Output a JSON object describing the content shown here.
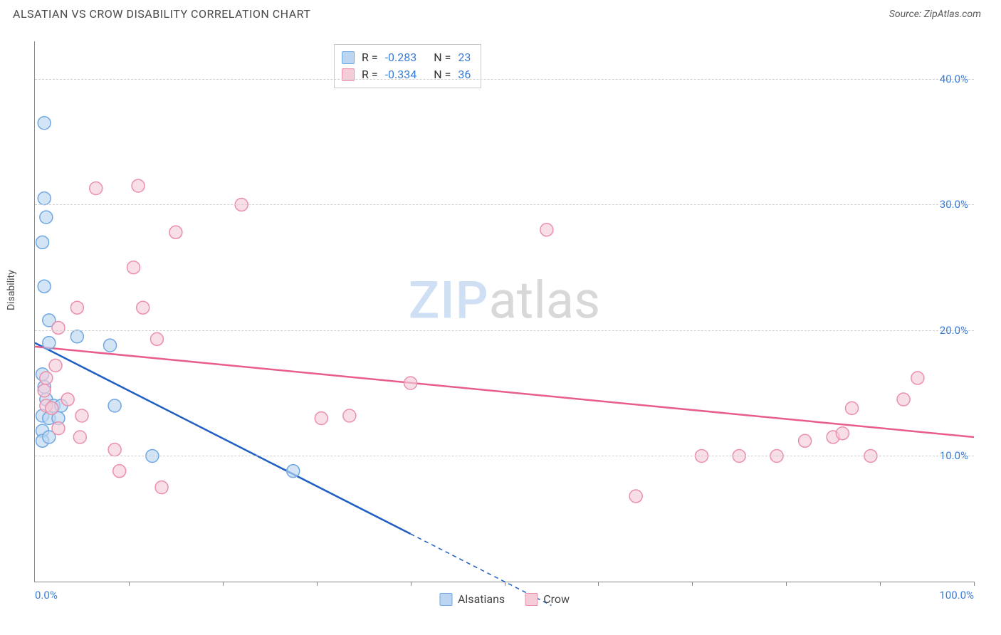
{
  "header": {
    "title": "ALSATIAN VS CROW DISABILITY CORRELATION CHART",
    "source": "Source: ZipAtlas.com"
  },
  "chart": {
    "type": "scatter",
    "ylabel": "Disability",
    "xlim": [
      0,
      100
    ],
    "ylim": [
      0,
      43
    ],
    "yticks": [
      10,
      20,
      30,
      40
    ],
    "ytick_labels": [
      "10.0%",
      "20.0%",
      "30.0%",
      "40.0%"
    ],
    "xtick_labels": [
      "0.0%",
      "100.0%"
    ],
    "xtick_positions": [
      10,
      20,
      30,
      40,
      50,
      60,
      70,
      80,
      90,
      100
    ],
    "grid_color": "#d0d0d0",
    "axis_color": "#888888",
    "background_color": "#ffffff",
    "marker_radius": 9,
    "marker_stroke_width": 1.5,
    "trend_line_width": 2.5,
    "watermark": {
      "zip": "ZIP",
      "atlas": "atlas"
    },
    "series": [
      {
        "name": "Alsatians",
        "fill": "#bcd5f0",
        "stroke": "#6fa8e4",
        "trend_color": "#1f5fc4",
        "trend": {
          "x1": 0,
          "y1": 19.0,
          "x2": 40,
          "y2": 3.8,
          "dash_to_x": 55
        },
        "R": "-0.283",
        "N": "23",
        "points": [
          [
            1.0,
            36.5
          ],
          [
            1.0,
            30.5
          ],
          [
            1.2,
            29.0
          ],
          [
            0.8,
            27.0
          ],
          [
            1.0,
            23.5
          ],
          [
            1.5,
            20.8
          ],
          [
            1.5,
            19.0
          ],
          [
            4.5,
            19.5
          ],
          [
            0.8,
            16.5
          ],
          [
            1.0,
            15.5
          ],
          [
            1.2,
            14.5
          ],
          [
            2.0,
            14.0
          ],
          [
            2.8,
            14.0
          ],
          [
            0.8,
            13.2
          ],
          [
            1.5,
            13.0
          ],
          [
            2.5,
            13.0
          ],
          [
            0.8,
            12.0
          ],
          [
            0.8,
            11.2
          ],
          [
            1.5,
            11.5
          ],
          [
            8.5,
            14.0
          ],
          [
            8.0,
            18.8
          ],
          [
            12.5,
            10.0
          ],
          [
            27.5,
            8.8
          ]
        ]
      },
      {
        "name": "Crow",
        "fill": "#f5cdd8",
        "stroke": "#eb8fac",
        "trend_color": "#e85d8c",
        "trend": {
          "x1": 0,
          "y1": 18.7,
          "x2": 100,
          "y2": 11.5
        },
        "R": "-0.334",
        "N": "36",
        "points": [
          [
            6.5,
            31.3
          ],
          [
            11.0,
            31.5
          ],
          [
            22.0,
            30.0
          ],
          [
            15.0,
            27.8
          ],
          [
            10.5,
            25.0
          ],
          [
            4.5,
            21.8
          ],
          [
            11.5,
            21.8
          ],
          [
            13.0,
            19.3
          ],
          [
            2.2,
            17.2
          ],
          [
            2.5,
            20.2
          ],
          [
            1.2,
            16.2
          ],
          [
            1.0,
            15.2
          ],
          [
            1.2,
            14.0
          ],
          [
            1.8,
            13.8
          ],
          [
            3.5,
            14.5
          ],
          [
            5.0,
            13.2
          ],
          [
            2.5,
            12.2
          ],
          [
            4.8,
            11.5
          ],
          [
            8.5,
            10.5
          ],
          [
            13.5,
            7.5
          ],
          [
            9.0,
            8.8
          ],
          [
            30.5,
            13.0
          ],
          [
            33.5,
            13.2
          ],
          [
            40.0,
            15.8
          ],
          [
            54.5,
            28.0
          ],
          [
            64.0,
            6.8
          ],
          [
            71.0,
            10.0
          ],
          [
            75.0,
            10.0
          ],
          [
            82.0,
            11.2
          ],
          [
            85.0,
            11.5
          ],
          [
            86.0,
            11.8
          ],
          [
            87.0,
            13.8
          ],
          [
            92.5,
            14.5
          ],
          [
            94.0,
            16.2
          ],
          [
            89.0,
            10.0
          ],
          [
            79.0,
            10.0
          ]
        ]
      }
    ],
    "stats_label": {
      "R": "R =",
      "N": "N ="
    },
    "bottom_legend": [
      "Alsatians",
      "Crow"
    ]
  }
}
